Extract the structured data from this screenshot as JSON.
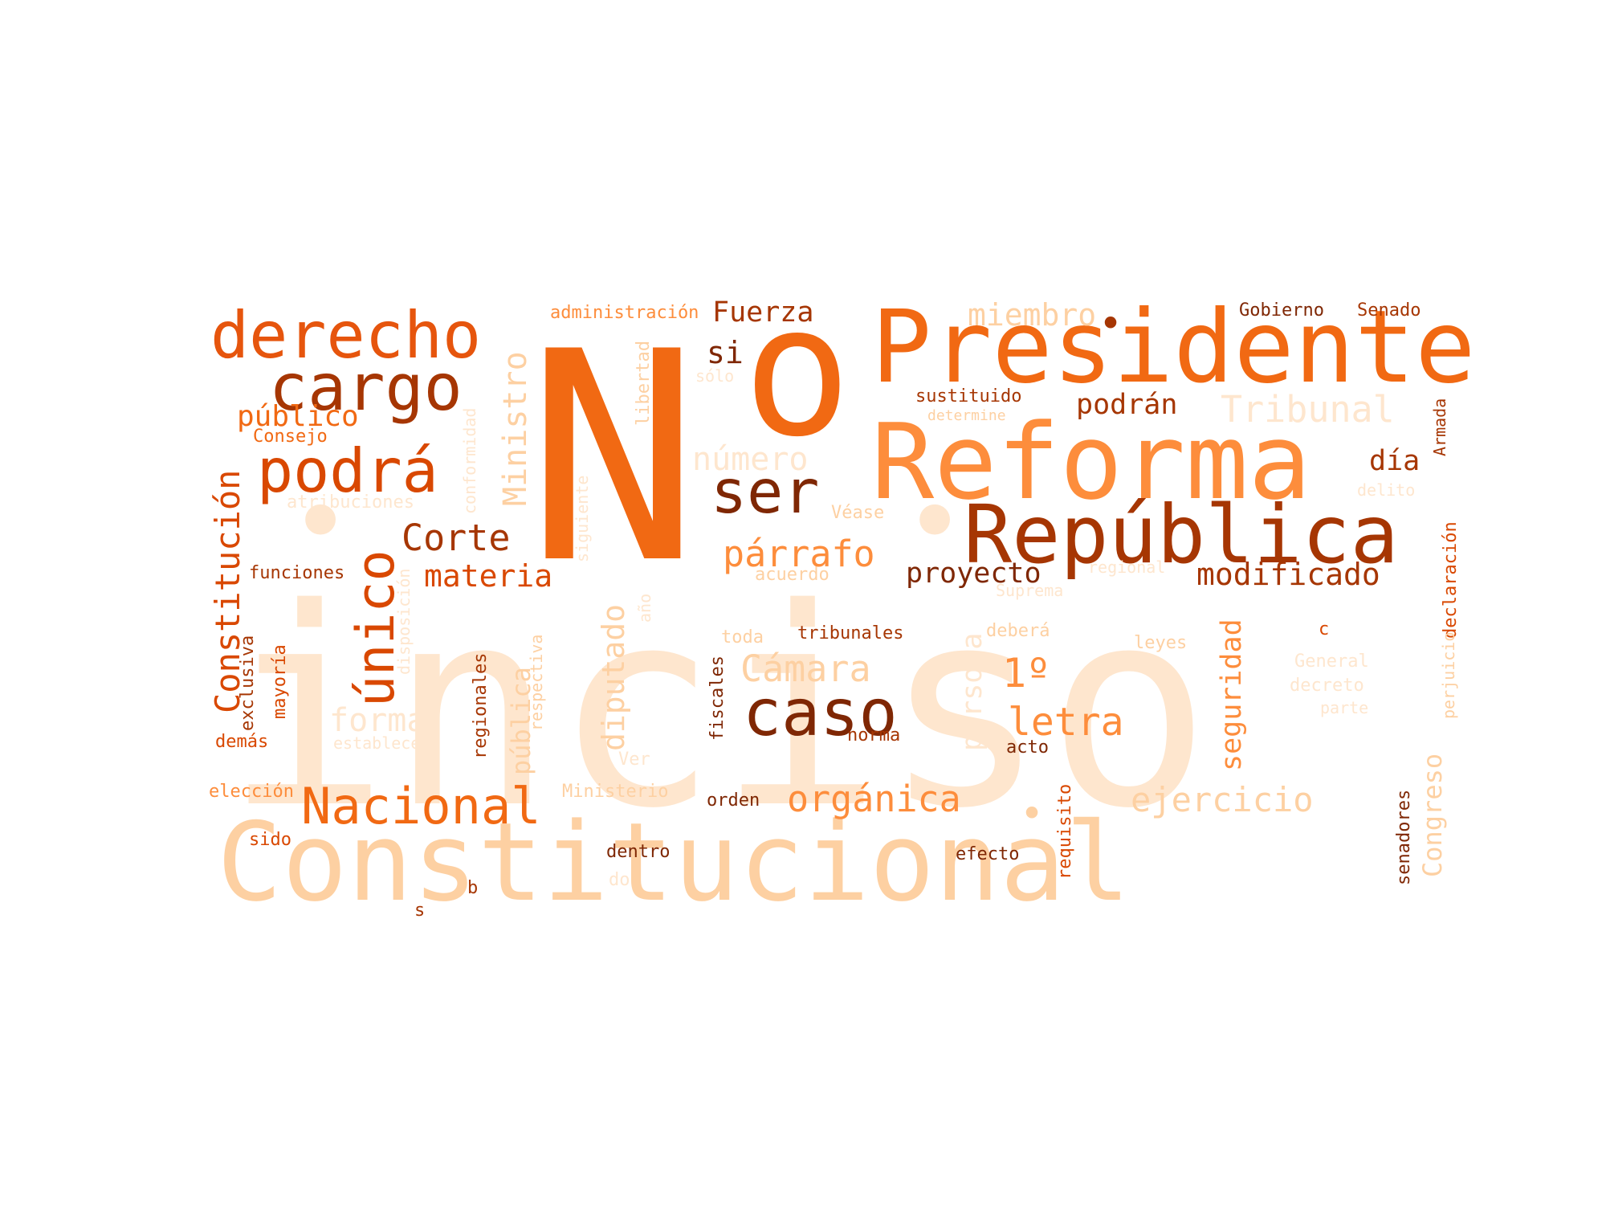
{
  "words": [
    {
      "text": "inciso",
      "color": "#fee6ce"
    },
    {
      "text": "Constitucional",
      "color": "#fdd0a2"
    },
    {
      "text": "N",
      "color": "#f16913"
    },
    {
      "text": "o",
      "color": "#f16913"
    },
    {
      "text": "Presidente",
      "color": "#f16913"
    },
    {
      "text": "Reforma",
      "color": "#fd8d3c"
    },
    {
      "text": "República",
      "color": "#a63603"
    },
    {
      "text": "derecho",
      "color": "#e6550d"
    },
    {
      "text": "cargo",
      "color": "#a63603"
    },
    {
      "text": "podrá",
      "color": "#d94801"
    },
    {
      "text": "ser",
      "color": "#7f2704"
    },
    {
      "text": "caso",
      "color": "#7f2704"
    },
    {
      "text": "Nacional",
      "color": "#f16913"
    },
    {
      "text": "único",
      "color": "#d94801"
    },
    {
      "text": "Constitución",
      "color": "#d94801"
    },
    {
      "text": "Ministro",
      "color": "#fdd0a2"
    },
    {
      "text": "Corte",
      "color": "#a63603"
    },
    {
      "text": "materia",
      "color": "#d94801"
    },
    {
      "text": "público",
      "color": "#f16913"
    },
    {
      "text": "Consejo",
      "color": "#f16913"
    },
    {
      "text": "atribuciones",
      "color": "#fee6ce"
    },
    {
      "text": "funciones",
      "color": "#a63603"
    },
    {
      "text": "exclusiva",
      "color": "#a63603"
    },
    {
      "text": "mayoría",
      "color": "#d94801"
    },
    {
      "text": "demás",
      "color": "#d94801"
    },
    {
      "text": "forma",
      "color": "#fee6ce"
    },
    {
      "text": "establecer",
      "color": "#fee6ce"
    },
    {
      "text": "elección",
      "color": "#fd8d3c"
    },
    {
      "text": "sido",
      "color": "#d94801"
    },
    {
      "text": "s",
      "color": "#a63603"
    },
    {
      "text": "b",
      "color": "#a63603"
    },
    {
      "text": "administración",
      "color": "#fd8d3c"
    },
    {
      "text": "Fuerza",
      "color": "#a63603"
    },
    {
      "text": "si",
      "color": "#7f2704"
    },
    {
      "text": "sólo",
      "color": "#fee6ce"
    },
    {
      "text": "libertad",
      "color": "#fdd0a2"
    },
    {
      "text": "número",
      "color": "#fee6ce"
    },
    {
      "text": "conformidad",
      "color": "#fee6ce"
    },
    {
      "text": "siguiente",
      "color": "#fee6ce"
    },
    {
      "text": "disposición",
      "color": "#fee6ce"
    },
    {
      "text": "párrafo",
      "color": "#fd8d3c"
    },
    {
      "text": "diputado",
      "color": "#fdd0a2"
    },
    {
      "text": "año",
      "color": "#fee6ce"
    },
    {
      "text": "pública",
      "color": "#fdd0a2"
    },
    {
      "text": "respectiva",
      "color": "#fdd0a2"
    },
    {
      "text": "regionales",
      "color": "#a63603"
    },
    {
      "text": "Ver",
      "color": "#fee6ce"
    },
    {
      "text": "Ministerio",
      "color": "#fdd0a2"
    },
    {
      "text": "Véase",
      "color": "#fdd0a2"
    },
    {
      "text": "acuerdo",
      "color": "#fdd0a2"
    },
    {
      "text": "Cámara",
      "color": "#fdd0a2"
    },
    {
      "text": "toda",
      "color": "#fdd0a2"
    },
    {
      "text": "fiscales",
      "color": "#7f2704"
    },
    {
      "text": "tribunales",
      "color": "#a63603"
    },
    {
      "text": "orden",
      "color": "#7f2704"
    },
    {
      "text": "dentro",
      "color": "#7f2704"
    },
    {
      "text": "do",
      "color": "#fee6ce"
    },
    {
      "text": "orgánica",
      "color": "#fd8d3c"
    },
    {
      "text": "miembro",
      "color": "#fdd0a2"
    },
    {
      "text": "sustituido",
      "color": "#a63603"
    },
    {
      "text": "determine",
      "color": "#fdd0a2"
    },
    {
      "text": "podrán",
      "color": "#a63603"
    },
    {
      "text": "proyecto",
      "color": "#7f2704"
    },
    {
      "text": "1º",
      "color": "#fd8d3c"
    },
    {
      "text": "letra",
      "color": "#fd8d3c"
    },
    {
      "text": "persona",
      "color": "#fee6ce"
    },
    {
      "text": "norma",
      "color": "#a63603"
    },
    {
      "text": "acto",
      "color": "#7f2704"
    },
    {
      "text": "deberá",
      "color": "#fdd0a2"
    },
    {
      "text": "Suprema",
      "color": "#fee6ce"
    },
    {
      "text": "regional",
      "color": "#fee6ce"
    },
    {
      "text": "modificado",
      "color": "#a63603"
    },
    {
      "text": "seguridad",
      "color": "#fd8d3c"
    },
    {
      "text": "efecto",
      "color": "#7f2704"
    },
    {
      "text": "requisito",
      "color": "#d94801"
    },
    {
      "text": "ejercicio",
      "color": "#fdd0a2"
    },
    {
      "text": "Gobierno",
      "color": "#7f2704"
    },
    {
      "text": "Senado",
      "color": "#a63603"
    },
    {
      "text": "Tribunal",
      "color": "#fee6ce"
    },
    {
      "text": "día",
      "color": "#a63603"
    },
    {
      "text": "delito",
      "color": "#fee6ce"
    },
    {
      "text": "Armada",
      "color": "#a63603"
    },
    {
      "text": "declaración",
      "color": "#d94801"
    },
    {
      "text": "perjuicio",
      "color": "#fdd0a2"
    },
    {
      "text": "leyes",
      "color": "#fdd0a2"
    },
    {
      "text": "c",
      "color": "#d94801"
    },
    {
      "text": "General",
      "color": "#fee6ce"
    },
    {
      "text": "decreto",
      "color": "#fee6ce"
    },
    {
      "text": "parte",
      "color": "#fee6ce"
    },
    {
      "text": "Congreso",
      "color": "#fdd0a2"
    },
    {
      "text": "senadores",
      "color": "#7f2704"
    },
    {
      "text": "•",
      "color": "#fee6ce"
    },
    {
      "text": "•",
      "color": "#fee6ce"
    },
    {
      "text": "•",
      "color": "#a63603"
    },
    {
      "text": "•",
      "color": "#fdd0a2"
    }
  ]
}
